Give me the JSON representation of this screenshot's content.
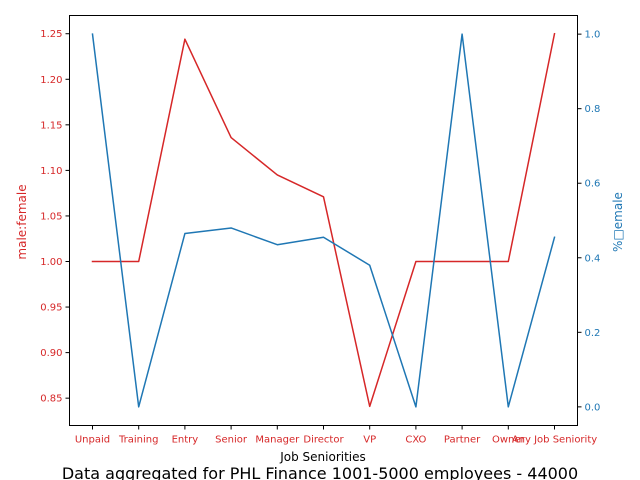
{
  "chart_data": {
    "type": "line",
    "categories": [
      "Unpaid",
      "Training",
      "Entry",
      "Senior",
      "Manager",
      "Director",
      "VP",
      "CXO",
      "Partner",
      "Owner",
      "Any Job Seniority"
    ],
    "xlabel": "Job Seniorities",
    "caption": "Data aggregated for PHL Finance 1001-5000 employees - 44000",
    "left_axis": {
      "label": "male:female",
      "color": "#d62728",
      "ylim": [
        0.82,
        1.27
      ],
      "ticks": [
        0.85,
        0.9,
        0.95,
        1.0,
        1.05,
        1.1,
        1.15,
        1.2,
        1.25
      ],
      "tick_labels": [
        "0.85",
        "0.90",
        "0.95",
        "1.00",
        "1.05",
        "1.10",
        "1.15",
        "1.20",
        "1.25"
      ]
    },
    "right_axis": {
      "label": "%□emale",
      "color": "#1f77b4",
      "ylim": [
        -0.05,
        1.05
      ],
      "ticks": [
        0.0,
        0.2,
        0.4,
        0.6,
        0.8,
        1.0
      ],
      "tick_labels": [
        "0.0",
        "0.2",
        "0.4",
        "0.6",
        "0.8",
        "1.0"
      ]
    },
    "series": [
      {
        "axis": "left",
        "color": "#d62728",
        "values": [
          1.0,
          1.0,
          1.244,
          1.136,
          1.095,
          1.071,
          0.841,
          1.0,
          1.0,
          1.0,
          1.25
        ]
      },
      {
        "axis": "right",
        "color": "#1f77b4",
        "values": [
          1.0,
          0.0,
          0.465,
          0.48,
          0.435,
          0.455,
          0.38,
          0.0,
          1.0,
          0.0,
          0.455
        ]
      }
    ]
  }
}
